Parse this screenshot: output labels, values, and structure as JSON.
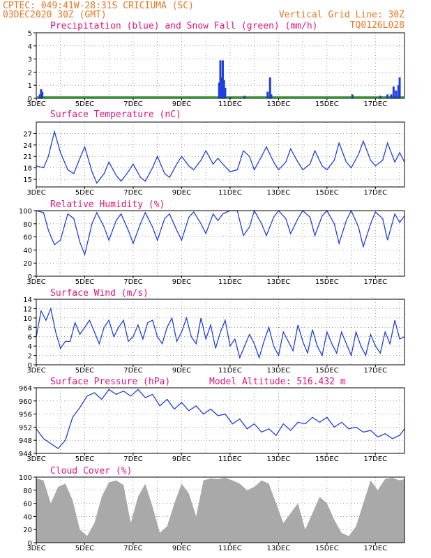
{
  "header": {
    "line1": "CPTEC:   049:41W-28:31S   CRICIUMA (SC)",
    "line2": "03DEC2020 30Z (GMT)",
    "grid_note": "Vertical Grid Line: 30Z",
    "code": "TQ0126L028"
  },
  "colors": {
    "header": "#e87722",
    "title": "#e0147a",
    "series": "#1f3fdd",
    "snow": "#1fa01f",
    "cloud": "#a9a9a9"
  },
  "chart_data": [
    {
      "type": "bar",
      "id": "precip",
      "title": "Precipitation (blue) and Snow Fall (green) (mm/h)",
      "ylim": [
        0,
        5
      ],
      "yticks": [
        0,
        1,
        2,
        3,
        4,
        5
      ],
      "x_ticks": [
        "3DEC",
        "5DEC",
        "7DEC",
        "9DEC",
        "11DEC",
        "13DEC",
        "15DEC",
        "17DEC"
      ],
      "x_range_days": [
        3,
        18.2
      ],
      "series": [
        {
          "name": "Precipitation",
          "x": [
            3.15,
            3.2,
            3.25,
            10.55,
            10.6,
            10.65,
            10.7,
            10.75,
            10.8,
            11.0,
            11.6,
            12.55,
            12.65,
            12.7,
            16.05,
            17.2,
            17.5,
            17.65,
            17.75,
            17.85,
            17.95,
            18.0
          ],
          "values": [
            0.3,
            0.7,
            0.5,
            1.2,
            2.9,
            1.6,
            2.9,
            1.4,
            0.8,
            0.1,
            0.2,
            0.5,
            1.6,
            0.3,
            0.3,
            0.2,
            0.3,
            0.3,
            0.9,
            0.6,
            1.0,
            1.6
          ]
        },
        {
          "name": "Snow Fall",
          "values": [
            0.1
          ]
        }
      ]
    },
    {
      "type": "line",
      "id": "temp",
      "title": "Surface Temperature (nC)",
      "ylim": [
        13,
        30
      ],
      "yticks": [
        15,
        18,
        21,
        24,
        27
      ],
      "x_ticks": [
        "3DEC",
        "5DEC",
        "7DEC",
        "9DEC",
        "11DEC",
        "13DEC",
        "15DEC",
        "17DEC"
      ],
      "x_range_days": [
        3,
        18.2
      ],
      "x": [
        3.0,
        3.3,
        3.5,
        3.75,
        4.0,
        4.3,
        4.55,
        4.8,
        5.0,
        5.3,
        5.5,
        5.8,
        6.0,
        6.3,
        6.5,
        6.8,
        7.0,
        7.3,
        7.5,
        7.8,
        8.0,
        8.3,
        8.5,
        8.8,
        9.0,
        9.3,
        9.5,
        9.8,
        10.0,
        10.3,
        10.5,
        10.7,
        11.0,
        11.3,
        11.55,
        11.8,
        12.0,
        12.3,
        12.5,
        12.8,
        13.0,
        13.3,
        13.5,
        13.8,
        14.0,
        14.3,
        14.5,
        14.8,
        15.0,
        15.3,
        15.5,
        15.8,
        16.0,
        16.3,
        16.5,
        16.8,
        17.0,
        17.3,
        17.5,
        17.8,
        18.0,
        18.2
      ],
      "values": [
        18.5,
        18.0,
        21.0,
        27.5,
        22.0,
        17.5,
        16.5,
        20.5,
        23.5,
        17.0,
        14.0,
        16.5,
        19.5,
        16.0,
        14.5,
        17.0,
        19.0,
        15.5,
        14.5,
        18.0,
        21.0,
        16.5,
        15.5,
        19.0,
        21.0,
        18.5,
        17.5,
        20.0,
        22.5,
        19.0,
        20.5,
        19.0,
        17.0,
        17.5,
        22.5,
        21.0,
        17.5,
        21.0,
        23.5,
        19.5,
        17.5,
        19.5,
        23.0,
        19.5,
        17.5,
        19.0,
        22.5,
        18.5,
        17.5,
        20.0,
        24.5,
        19.5,
        18.0,
        21.5,
        25.0,
        20.0,
        18.5,
        20.0,
        24.5,
        19.5,
        22.0,
        19.5
      ]
    },
    {
      "type": "line",
      "id": "rh",
      "title": "Relative Humidity (%)",
      "ylim": [
        0,
        100
      ],
      "yticks": [
        0,
        20,
        40,
        60,
        80,
        100
      ],
      "x_ticks": [
        "3DEC",
        "5DEC",
        "7DEC",
        "9DEC",
        "11DEC",
        "13DEC",
        "15DEC",
        "17DEC"
      ],
      "x_range_days": [
        3,
        18.2
      ],
      "x": [
        3.0,
        3.3,
        3.5,
        3.75,
        4.0,
        4.3,
        4.55,
        4.8,
        5.0,
        5.3,
        5.5,
        5.8,
        6.0,
        6.3,
        6.5,
        6.8,
        7.0,
        7.3,
        7.5,
        7.8,
        8.0,
        8.3,
        8.5,
        8.8,
        9.0,
        9.3,
        9.5,
        9.8,
        10.0,
        10.3,
        10.5,
        10.7,
        11.0,
        11.3,
        11.55,
        11.8,
        12.0,
        12.3,
        12.5,
        12.8,
        13.0,
        13.3,
        13.5,
        13.8,
        14.0,
        14.3,
        14.5,
        14.8,
        15.0,
        15.3,
        15.5,
        15.8,
        16.0,
        16.3,
        16.5,
        16.8,
        17.0,
        17.3,
        17.5,
        17.8,
        18.0,
        18.2
      ],
      "values": [
        100,
        97,
        70,
        48,
        55,
        95,
        88,
        52,
        33,
        80,
        97,
        75,
        55,
        85,
        95,
        70,
        50,
        80,
        97,
        75,
        55,
        88,
        95,
        70,
        55,
        90,
        98,
        80,
        65,
        95,
        85,
        95,
        100,
        100,
        62,
        75,
        100,
        80,
        62,
        90,
        100,
        88,
        65,
        88,
        100,
        90,
        62,
        92,
        100,
        80,
        50,
        85,
        100,
        75,
        45,
        80,
        98,
        88,
        55,
        95,
        82,
        92
      ]
    },
    {
      "type": "line",
      "id": "wind",
      "title": "Surface Wind (m/s)",
      "ylim": [
        0,
        14
      ],
      "yticks": [
        0,
        2,
        4,
        6,
        8,
        10,
        12,
        14
      ],
      "x_ticks": [
        "3DEC",
        "5DEC",
        "7DEC",
        "9DEC",
        "11DEC",
        "13DEC",
        "15DEC",
        "17DEC"
      ],
      "x_range_days": [
        3,
        18.2
      ],
      "x": [
        3.0,
        3.2,
        3.4,
        3.6,
        3.8,
        4.0,
        4.2,
        4.4,
        4.6,
        4.8,
        5.0,
        5.2,
        5.4,
        5.6,
        5.8,
        6.0,
        6.2,
        6.4,
        6.6,
        6.8,
        7.0,
        7.2,
        7.4,
        7.6,
        7.8,
        8.0,
        8.2,
        8.4,
        8.6,
        8.8,
        9.0,
        9.2,
        9.4,
        9.6,
        9.8,
        10.0,
        10.2,
        10.4,
        10.6,
        10.8,
        11.0,
        11.2,
        11.4,
        11.6,
        11.8,
        12.0,
        12.2,
        12.4,
        12.6,
        12.8,
        13.0,
        13.2,
        13.4,
        13.6,
        13.8,
        14.0,
        14.2,
        14.4,
        14.6,
        14.8,
        15.0,
        15.2,
        15.4,
        15.6,
        15.8,
        16.0,
        16.2,
        16.4,
        16.6,
        16.8,
        17.0,
        17.2,
        17.4,
        17.6,
        17.8,
        18.0,
        18.2
      ],
      "values": [
        6.0,
        11.5,
        9.5,
        12.0,
        7.0,
        3.5,
        5.0,
        5.0,
        9.0,
        6.5,
        8.0,
        9.5,
        7.0,
        4.5,
        8.0,
        9.5,
        6.0,
        8.0,
        9.5,
        5.0,
        6.0,
        8.5,
        5.5,
        9.0,
        9.5,
        6.0,
        4.5,
        8.0,
        10.0,
        5.0,
        7.0,
        10.0,
        6.0,
        4.5,
        10.0,
        5.5,
        8.5,
        3.5,
        7.0,
        9.5,
        4.0,
        5.5,
        1.5,
        4.0,
        6.5,
        4.5,
        1.5,
        5.0,
        8.0,
        4.0,
        2.0,
        7.0,
        5.0,
        3.0,
        8.5,
        5.0,
        2.5,
        7.5,
        4.0,
        2.0,
        7.0,
        4.5,
        2.5,
        7.0,
        4.5,
        2.0,
        7.0,
        4.0,
        2.0,
        6.5,
        4.0,
        2.5,
        7.0,
        4.5,
        9.5,
        5.5,
        6.0
      ]
    },
    {
      "type": "line",
      "id": "pressure",
      "title": "Surface Pressure (hPa)",
      "annotation": "Model Altitude: 516.432 m",
      "ylim": [
        944,
        964
      ],
      "yticks": [
        944,
        948,
        952,
        956,
        960,
        964
      ],
      "x_ticks": [
        "3DEC",
        "5DEC",
        "7DEC",
        "9DEC",
        "11DEC",
        "13DEC",
        "15DEC",
        "17DEC"
      ],
      "x_range_days": [
        3,
        18.2
      ],
      "x": [
        3.0,
        3.3,
        3.6,
        3.9,
        4.2,
        4.5,
        4.8,
        5.1,
        5.4,
        5.7,
        6.0,
        6.3,
        6.6,
        6.9,
        7.2,
        7.5,
        7.8,
        8.1,
        8.4,
        8.7,
        9.0,
        9.3,
        9.6,
        9.9,
        10.2,
        10.5,
        10.8,
        11.1,
        11.4,
        11.7,
        12.0,
        12.3,
        12.6,
        12.9,
        13.2,
        13.5,
        13.8,
        14.1,
        14.4,
        14.7,
        15.0,
        15.3,
        15.6,
        15.9,
        16.2,
        16.5,
        16.8,
        17.1,
        17.4,
        17.7,
        18.0,
        18.2
      ],
      "values": [
        951.5,
        948.5,
        947.0,
        945.5,
        948.0,
        955.0,
        958.0,
        961.5,
        962.5,
        960.5,
        963.5,
        962.0,
        963.0,
        961.5,
        963.5,
        961.0,
        962.0,
        958.5,
        960.5,
        957.5,
        959.5,
        957.0,
        958.5,
        956.0,
        957.5,
        955.5,
        956.0,
        953.0,
        954.5,
        951.5,
        953.0,
        950.5,
        951.5,
        949.5,
        953.0,
        951.0,
        953.5,
        953.0,
        955.0,
        953.5,
        955.0,
        952.0,
        953.5,
        951.5,
        952.0,
        950.5,
        951.0,
        949.0,
        950.0,
        948.5,
        949.5,
        951.5
      ]
    },
    {
      "type": "area",
      "id": "cloud",
      "title": "Cloud Cover (%)",
      "ylim": [
        0,
        100
      ],
      "yticks": [
        0,
        20,
        40,
        60,
        80,
        100
      ],
      "x_ticks": [
        "3DEC",
        "5DEC",
        "7DEC",
        "9DEC",
        "11DEC",
        "13DEC",
        "15DEC",
        "17DEC"
      ],
      "x_range_days": [
        3,
        18.2
      ],
      "x": [
        3.0,
        3.3,
        3.6,
        3.9,
        4.2,
        4.5,
        4.8,
        5.1,
        5.4,
        5.7,
        6.0,
        6.3,
        6.6,
        6.9,
        7.2,
        7.5,
        7.8,
        8.1,
        8.4,
        8.7,
        9.0,
        9.3,
        9.6,
        9.9,
        10.2,
        10.5,
        10.8,
        11.1,
        11.4,
        11.7,
        12.0,
        12.3,
        12.6,
        12.9,
        13.2,
        13.5,
        13.8,
        14.1,
        14.4,
        14.7,
        15.0,
        15.3,
        15.6,
        15.9,
        16.2,
        16.5,
        16.8,
        17.1,
        17.4,
        17.7,
        18.0,
        18.2
      ],
      "values": [
        98,
        95,
        60,
        85,
        90,
        65,
        20,
        10,
        30,
        70,
        92,
        95,
        88,
        30,
        70,
        90,
        55,
        15,
        25,
        60,
        90,
        75,
        40,
        95,
        98,
        97,
        99,
        95,
        90,
        80,
        85,
        95,
        90,
        60,
        30,
        45,
        60,
        20,
        45,
        70,
        60,
        35,
        15,
        10,
        25,
        60,
        95,
        80,
        97,
        99,
        95,
        97
      ]
    }
  ]
}
